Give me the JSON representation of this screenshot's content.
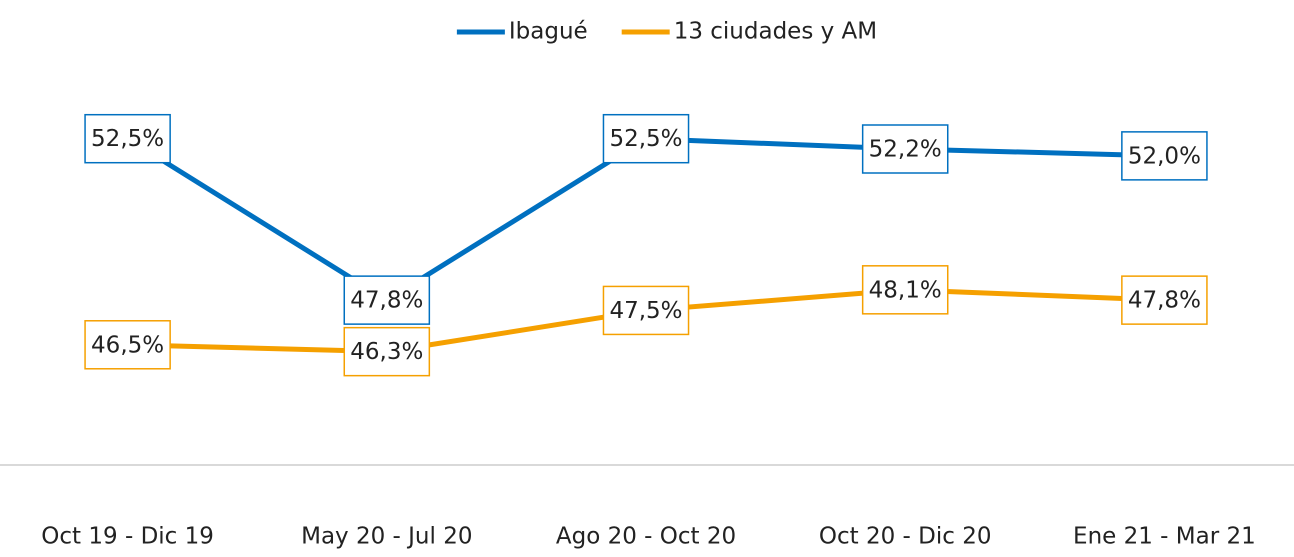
{
  "chart_data": {
    "type": "line",
    "categories": [
      "Oct 19 - Dic 19",
      "May 20 - Jul 20",
      "Ago 20 - Oct 20",
      "Oct 20 - Dic 20",
      "Ene 21 - Mar 21"
    ],
    "series": [
      {
        "name": "Ibagué",
        "color": "#0070c0",
        "values": [
          52.5,
          47.8,
          52.5,
          52.2,
          52.0
        ],
        "value_labels": [
          "52,5%",
          "47,8%",
          "52,5%",
          "52,2%",
          "52,0%"
        ]
      },
      {
        "name": "13 ciudades y AM",
        "color": "#f5a000",
        "values": [
          46.5,
          46.3,
          47.5,
          48.1,
          47.8
        ],
        "value_labels": [
          "46,5%",
          "46,3%",
          "47,5%",
          "48,1%",
          "47,8%"
        ]
      }
    ],
    "ylim": [
      43,
      54.5
    ],
    "legend": "top"
  }
}
